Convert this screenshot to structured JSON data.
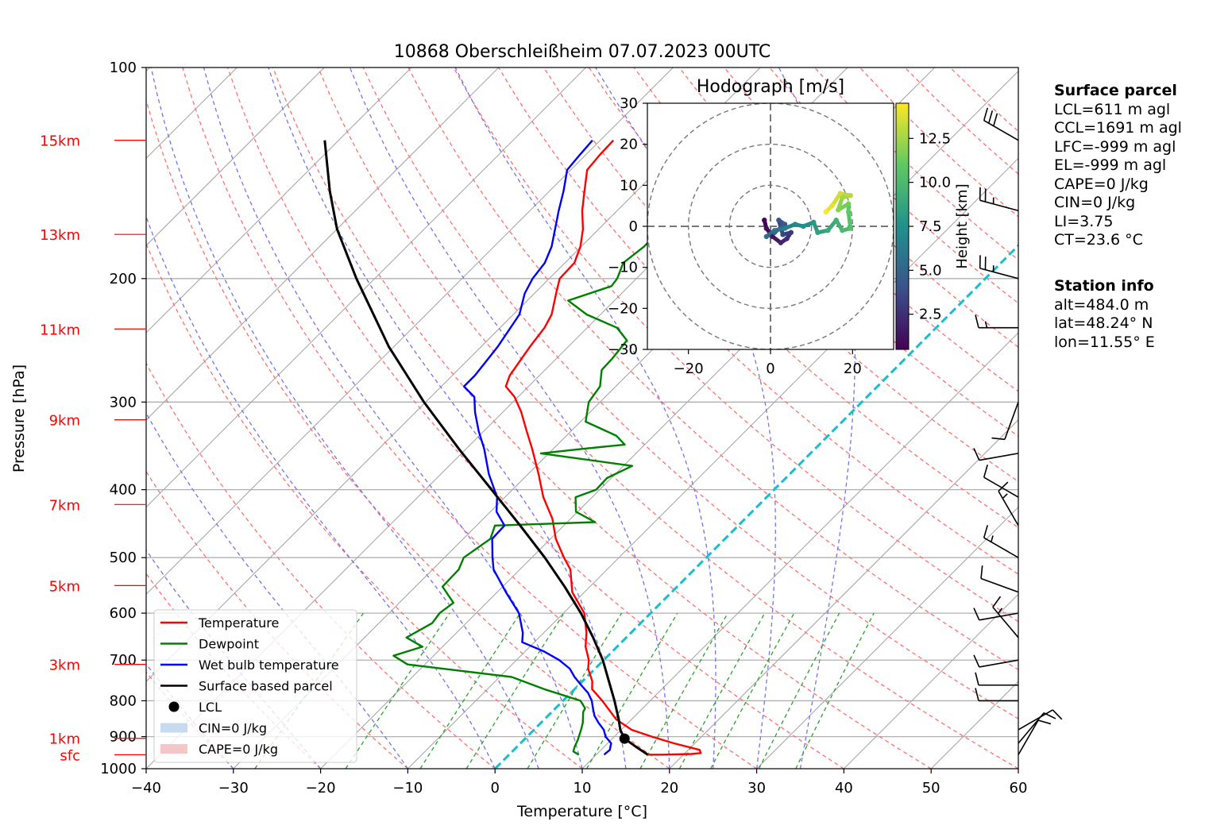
{
  "title": "10868 Oberschleißheim 07.07.2023 00UTC",
  "colors": {
    "temperature": "#ff0000",
    "dewpoint": "#008000",
    "wetbulb": "#0000ff",
    "parcel": "#000000",
    "dry_adiabat": "#ff6f6f",
    "moist_adiabat": "#7373ee",
    "mixing_ratio": "#2ca02c",
    "isotherm": "#aaaaaa",
    "zero_isotherm": "#17becf",
    "height_label": "#ff0000",
    "cin_fill": "#c6dbef",
    "cape_fill": "#f4c6c6"
  },
  "side_panel": {
    "surface_header": "Surface parcel",
    "surface_lines": [
      "LCL=611 m agl",
      "CCL=1691 m agl",
      "LFC=-999 m agl",
      "EL=-999 m agl",
      "CAPE=0 J/kg",
      "CIN=0 J/kg",
      "LI=3.75",
      "CT=23.6 °C"
    ],
    "station_header": "Station info",
    "station_lines": [
      "alt=484.0 m",
      "lat=48.24° N",
      "lon=11.55° E"
    ]
  },
  "chart_data": [
    {
      "type": "line",
      "name": "skew-T log-p diagram",
      "title": "10868 Oberschleißheim 07.07.2023 00UTC",
      "xlabel": "Temperature [°C]",
      "ylabel": "Pressure [hPa]",
      "xlim": [
        -40,
        60
      ],
      "ylim": [
        1000,
        100
      ],
      "y_scale": "log",
      "x_ticks": [
        "−40",
        "−30",
        "−20",
        "−10",
        "0",
        "10",
        "20",
        "30",
        "40",
        "50",
        "60"
      ],
      "y_ticks": [
        100,
        200,
        300,
        400,
        500,
        600,
        700,
        800,
        900,
        1000
      ],
      "height_labels": [
        {
          "label": "sfc",
          "p": 955
        },
        {
          "label": "1km",
          "p": 905
        },
        {
          "label": "3km",
          "p": 710
        },
        {
          "label": "5km",
          "p": 548
        },
        {
          "label": "7km",
          "p": 420
        },
        {
          "label": "9km",
          "p": 318
        },
        {
          "label": "11km",
          "p": 236
        },
        {
          "label": "13km",
          "p": 173
        },
        {
          "label": "15km",
          "p": 127
        }
      ],
      "series": [
        {
          "name": "Temperature",
          "points": [
            [
              955,
              15.9
            ],
            [
              955,
              17.5
            ],
            [
              953,
              20.8
            ],
            [
              950,
              21.8
            ],
            [
              940,
              21.3
            ],
            [
              920,
              17.6
            ],
            [
              900,
              14.3
            ],
            [
              880,
              11.2
            ],
            [
              850,
              8.2
            ],
            [
              800,
              4.5
            ],
            [
              770,
              2.0
            ],
            [
              750,
              1.1
            ],
            [
              720,
              -0.8
            ],
            [
              700,
              -1.7
            ],
            [
              670,
              -3.6
            ],
            [
              640,
              -5.1
            ],
            [
              600,
              -7.6
            ],
            [
              560,
              -11.4
            ],
            [
              520,
              -14.2
            ],
            [
              500,
              -16.3
            ],
            [
              470,
              -19.4
            ],
            [
              440,
              -22.1
            ],
            [
              410,
              -25.6
            ],
            [
              380,
              -28.8
            ],
            [
              350,
              -32.4
            ],
            [
              330,
              -35.1
            ],
            [
              310,
              -37.9
            ],
            [
              295,
              -40.4
            ],
            [
              285,
              -42.6
            ],
            [
              275,
              -43.4
            ],
            [
              260,
              -44.0
            ],
            [
              250,
              -44.4
            ],
            [
              235,
              -44.9
            ],
            [
              225,
              -45.6
            ],
            [
              210,
              -47.5
            ],
            [
              200,
              -48.8
            ],
            [
              190,
              -48.9
            ],
            [
              180,
              -50.1
            ],
            [
              170,
              -51.8
            ],
            [
              160,
              -54.0
            ],
            [
              150,
              -56.0
            ],
            [
              140,
              -58.1
            ],
            [
              133,
              -58.4
            ],
            [
              127,
              -58.5
            ]
          ]
        },
        {
          "name": "Dewpoint",
          "points": [
            [
              955,
              8.0
            ],
            [
              945,
              7.0
            ],
            [
              930,
              6.6
            ],
            [
              910,
              6.2
            ],
            [
              880,
              5.4
            ],
            [
              860,
              4.8
            ],
            [
              830,
              3.6
            ],
            [
              820,
              3.4
            ],
            [
              800,
              2.0
            ],
            [
              770,
              -3.5
            ],
            [
              740,
              -8.6
            ],
            [
              710,
              -22.0
            ],
            [
              690,
              -24.6
            ],
            [
              670,
              -22.3
            ],
            [
              650,
              -25.2
            ],
            [
              620,
              -23.9
            ],
            [
              600,
              -24.2
            ],
            [
              580,
              -23.8
            ],
            [
              550,
              -26.9
            ],
            [
              520,
              -27.0
            ],
            [
              500,
              -27.8
            ],
            [
              470,
              -26.9
            ],
            [
              450,
              -27.9
            ],
            [
              445,
              -16.8
            ],
            [
              430,
              -20.2
            ],
            [
              410,
              -21.9
            ],
            [
              400,
              -20.4
            ],
            [
              385,
              -20.5
            ],
            [
              370,
              -19.0
            ],
            [
              355,
              -30.9
            ],
            [
              350,
              -26.8
            ],
            [
              345,
              -22.3
            ],
            [
              335,
              -24.3
            ],
            [
              320,
              -29.4
            ],
            [
              300,
              -31.3
            ],
            [
              285,
              -31.8
            ],
            [
              270,
              -33.5
            ],
            [
              260,
              -33.6
            ],
            [
              245,
              -34.0
            ],
            [
              235,
              -36.6
            ],
            [
              225,
              -41.6
            ],
            [
              215,
              -45.3
            ],
            [
              205,
              -42.0
            ],
            [
              200,
              -42.2
            ],
            [
              190,
              -43.3
            ],
            [
              180,
              -42.8
            ],
            [
              170,
              -42.9
            ],
            [
              160,
              -43.2
            ],
            [
              150,
              -43.8
            ],
            [
              140,
              -44.1
            ],
            [
              133,
              -44.4
            ],
            [
              127,
              -44.5
            ]
          ]
        },
        {
          "name": "Wet bulb temperature",
          "points": [
            [
              955,
              10.9
            ],
            [
              940,
              11.0
            ],
            [
              920,
              10.4
            ],
            [
              900,
              9.0
            ],
            [
              880,
              8.0
            ],
            [
              860,
              6.6
            ],
            [
              840,
              5.3
            ],
            [
              820,
              4.3
            ],
            [
              800,
              3.3
            ],
            [
              780,
              2.0
            ],
            [
              760,
              0.3
            ],
            [
              740,
              -1.4
            ],
            [
              720,
              -2.9
            ],
            [
              700,
              -5.1
            ],
            [
              680,
              -7.9
            ],
            [
              660,
              -11.4
            ],
            [
              640,
              -12.4
            ],
            [
              600,
              -15.1
            ],
            [
              560,
              -19.0
            ],
            [
              520,
              -23.0
            ],
            [
              500,
              -24.5
            ],
            [
              470,
              -26.7
            ],
            [
              450,
              -26.8
            ],
            [
              430,
              -29.3
            ],
            [
              410,
              -30.9
            ],
            [
              380,
              -34.5
            ],
            [
              350,
              -37.9
            ],
            [
              330,
              -40.6
            ],
            [
              310,
              -43.2
            ],
            [
              295,
              -45.0
            ],
            [
              285,
              -47.4
            ],
            [
              275,
              -47.4
            ],
            [
              260,
              -47.8
            ],
            [
              250,
              -48.1
            ],
            [
              235,
              -48.8
            ],
            [
              225,
              -49.3
            ],
            [
              210,
              -51.1
            ],
            [
              200,
              -51.9
            ],
            [
              190,
              -52.3
            ],
            [
              180,
              -53.4
            ],
            [
              170,
              -55.0
            ],
            [
              160,
              -56.7
            ],
            [
              150,
              -58.4
            ],
            [
              140,
              -60.4
            ],
            [
              133,
              -60.7
            ],
            [
              127,
              -60.9
            ]
          ]
        },
        {
          "name": "Surface based parcel",
          "points": [
            [
              955,
              15.9
            ],
            [
              930,
              13.6
            ],
            [
              906,
              11.4
            ],
            [
              880,
              9.9
            ],
            [
              850,
              8.5
            ],
            [
              800,
              5.9
            ],
            [
              750,
              3.0
            ],
            [
              700,
              -0.1
            ],
            [
              650,
              -3.8
            ],
            [
              600,
              -8.0
            ],
            [
              550,
              -12.9
            ],
            [
              500,
              -18.5
            ],
            [
              450,
              -25.0
            ],
            [
              400,
              -32.4
            ],
            [
              350,
              -40.8
            ],
            [
              300,
              -50.2
            ],
            [
              250,
              -60.6
            ],
            [
              200,
              -72.1
            ],
            [
              170,
              -80.0
            ],
            [
              150,
              -85.2
            ],
            [
              127,
              -91.6
            ]
          ]
        }
      ],
      "lcl": {
        "p": 906,
        "t": 11.4,
        "label": "LCL"
      },
      "legend": [
        {
          "label": "Temperature",
          "kind": "line",
          "color": "#ff0000"
        },
        {
          "label": "Dewpoint",
          "kind": "line",
          "color": "#008000"
        },
        {
          "label": "Wet bulb temperature",
          "kind": "line",
          "color": "#0000ff"
        },
        {
          "label": "Surface based parcel",
          "kind": "line",
          "color": "#000000"
        },
        {
          "label": "LCL",
          "kind": "dot",
          "color": "#000000"
        },
        {
          "label": "CIN=0 J/kg",
          "kind": "patch",
          "color": "#c6dbef"
        },
        {
          "label": "CAPE=0 J/kg",
          "kind": "patch",
          "color": "#f4c6c6"
        }
      ],
      "legend_position": "lower-left",
      "wind_barbs": [
        {
          "p": 127,
          "speed_kt": 30,
          "dir": 300
        },
        {
          "p": 160,
          "speed_kt": 25,
          "dir": 285
        },
        {
          "p": 200,
          "speed_kt": 25,
          "dir": 285
        },
        {
          "p": 235,
          "speed_kt": 15,
          "dir": 270
        },
        {
          "p": 300,
          "speed_kt": 10,
          "dir": 200
        },
        {
          "p": 355,
          "speed_kt": 10,
          "dir": 260
        },
        {
          "p": 410,
          "speed_kt": 10,
          "dir": 300
        },
        {
          "p": 450,
          "speed_kt": 15,
          "dir": 330
        },
        {
          "p": 500,
          "speed_kt": 15,
          "dir": 300
        },
        {
          "p": 560,
          "speed_kt": 10,
          "dir": 290
        },
        {
          "p": 600,
          "speed_kt": 10,
          "dir": 260
        },
        {
          "p": 650,
          "speed_kt": 15,
          "dir": 320
        },
        {
          "p": 700,
          "speed_kt": 10,
          "dir": 260
        },
        {
          "p": 760,
          "speed_kt": 10,
          "dir": 270
        },
        {
          "p": 800,
          "speed_kt": 10,
          "dir": 270
        },
        {
          "p": 880,
          "speed_kt": 10,
          "dir": 60
        },
        {
          "p": 920,
          "speed_kt": 10,
          "dir": 40
        },
        {
          "p": 955,
          "speed_kt": 10,
          "dir": 30
        }
      ]
    },
    {
      "type": "scatter",
      "name": "hodograph",
      "title": "Hodograph [m/s]",
      "xlim": [
        -30,
        30
      ],
      "ylim": [
        -30,
        30
      ],
      "x_ticks": [
        "−20",
        "0",
        "20"
      ],
      "y_ticks": [
        "−30",
        "−20",
        "−10",
        "0",
        "10",
        "20",
        "30"
      ],
      "rings": [
        10,
        20,
        30
      ],
      "colorbar": {
        "label": "Height [km]",
        "ticks": [
          "2.5",
          "5.0",
          "7.5",
          "10.0",
          "12.5"
        ],
        "range": [
          0.5,
          14.5
        ]
      },
      "points": [
        {
          "u": -1.5,
          "v": 1.5,
          "h": 0.5
        },
        {
          "u": -1.0,
          "v": -0.5,
          "h": 1.0
        },
        {
          "u": 0.5,
          "v": -2.5,
          "h": 1.5
        },
        {
          "u": 2.5,
          "v": -4.0,
          "h": 2.0
        },
        {
          "u": 4.0,
          "v": -3.0,
          "h": 2.5
        },
        {
          "u": 5.0,
          "v": -1.5,
          "h": 3.0
        },
        {
          "u": 3.0,
          "v": -2.0,
          "h": 3.5
        },
        {
          "u": 2.0,
          "v": 1.5,
          "h": 4.0
        },
        {
          "u": 3.5,
          "v": 0.5,
          "h": 4.5
        },
        {
          "u": 1.0,
          "v": -1.5,
          "h": 5.0
        },
        {
          "u": -1.0,
          "v": -2.5,
          "h": 5.5
        },
        {
          "u": 1.0,
          "v": -1.0,
          "h": 6.0
        },
        {
          "u": 3.5,
          "v": -0.5,
          "h": 6.5
        },
        {
          "u": 6.0,
          "v": 0.5,
          "h": 7.0
        },
        {
          "u": 8.0,
          "v": 0.0,
          "h": 7.5
        },
        {
          "u": 10.5,
          "v": 1.0,
          "h": 8.0
        },
        {
          "u": 11.5,
          "v": -1.5,
          "h": 8.5
        },
        {
          "u": 14.0,
          "v": -1.0,
          "h": 9.0
        },
        {
          "u": 16.0,
          "v": 1.5,
          "h": 9.5
        },
        {
          "u": 17.5,
          "v": -1.0,
          "h": 10.0
        },
        {
          "u": 19.5,
          "v": -0.5,
          "h": 10.5
        },
        {
          "u": 19.0,
          "v": 3.5,
          "h": 11.0
        },
        {
          "u": 19.0,
          "v": 5.5,
          "h": 11.5
        },
        {
          "u": 16.5,
          "v": 4.0,
          "h": 12.0
        },
        {
          "u": 17.5,
          "v": 7.0,
          "h": 12.5
        },
        {
          "u": 19.5,
          "v": 7.5,
          "h": 13.0
        },
        {
          "u": 17.0,
          "v": 8.0,
          "h": 13.5
        },
        {
          "u": 15.0,
          "v": 5.0,
          "h": 14.0
        },
        {
          "u": 13.5,
          "v": 3.5,
          "h": 14.5
        }
      ]
    }
  ]
}
